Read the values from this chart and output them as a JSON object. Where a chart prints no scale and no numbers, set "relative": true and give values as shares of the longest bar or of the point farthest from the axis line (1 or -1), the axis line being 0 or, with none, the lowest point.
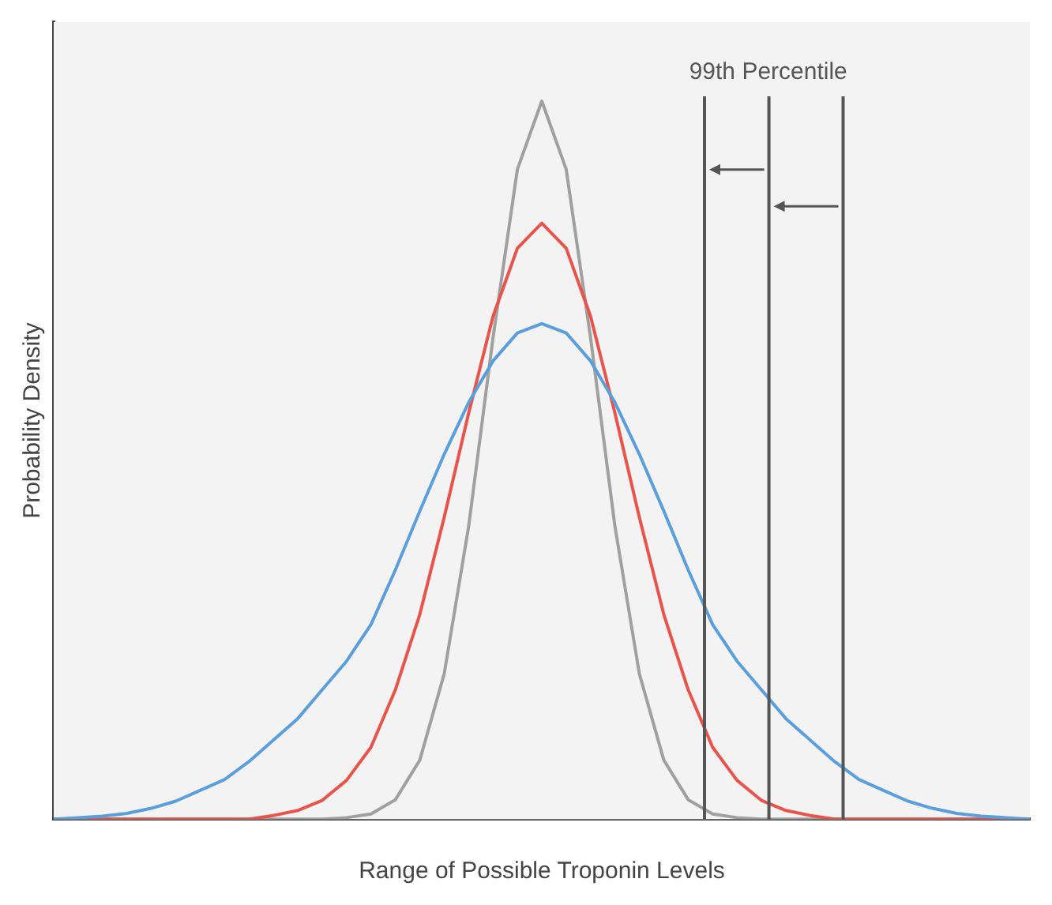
{
  "chart_data": {
    "type": "line",
    "xlabel": "Range of Possible Troponin Levels",
    "ylabel": "Probability Density",
    "relative": true,
    "legend": false,
    "marker": "none",
    "line_style": "solid",
    "categories": [
      null,
      null,
      null,
      null,
      null,
      null,
      null,
      null,
      null,
      null,
      null,
      null,
      null,
      null,
      null,
      null,
      null,
      null,
      null,
      null,
      null,
      null,
      null,
      null,
      null,
      null,
      null,
      null,
      null,
      null,
      null,
      null,
      null,
      null,
      null,
      null,
      null,
      null,
      null,
      null,
      null
    ],
    "series": [
      {
        "color": "#5a9fdc",
        "values": [
          0,
          0.002,
          0.004,
          0.008,
          0.015,
          0.025,
          0.04,
          0.055,
          0.08,
          0.11,
          0.14,
          0.18,
          0.22,
          0.271,
          0.347,
          0.429,
          0.508,
          0.58,
          0.638,
          0.677,
          0.69,
          0.677,
          0.638,
          0.58,
          0.508,
          0.429,
          0.347,
          0.271,
          0.22,
          0.18,
          0.14,
          0.11,
          0.08,
          0.055,
          0.04,
          0.025,
          0.015,
          0.008,
          0.004,
          0.002,
          0
        ]
      },
      {
        "color": "#e8534a",
        "values": [
          0,
          0,
          0,
          0,
          0,
          0,
          0,
          0,
          0,
          0.005,
          0.012,
          0.026,
          0.054,
          0.1,
          0.18,
          0.285,
          0.42,
          0.565,
          0.7,
          0.795,
          0.83,
          0.795,
          0.7,
          0.565,
          0.42,
          0.285,
          0.18,
          0.1,
          0.054,
          0.026,
          0.012,
          0.005,
          0,
          0,
          0,
          0,
          0,
          0,
          0,
          0,
          0
        ]
      },
      {
        "color": "#a0a0a0",
        "values": [
          0,
          0,
          0,
          0,
          0,
          0,
          0,
          0,
          0,
          0,
          0,
          0,
          0.002,
          0.007,
          0.027,
          0.082,
          0.202,
          0.407,
          0.67,
          0.905,
          1,
          0.905,
          0.67,
          0.407,
          0.202,
          0.082,
          0.027,
          0.007,
          0.002,
          0,
          0,
          0,
          0,
          0,
          0,
          0,
          0,
          0,
          0,
          0,
          0
        ]
      }
    ],
    "annotations": [
      "99th Percentile"
    ]
  }
}
